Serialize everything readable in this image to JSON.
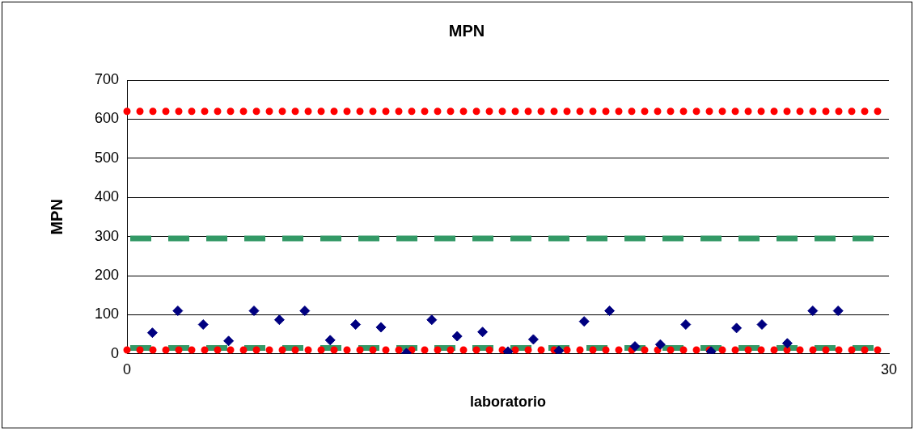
{
  "chart_data": {
    "type": "scatter",
    "title": "MPN",
    "xlabel": "laboratorio",
    "ylabel": "MPN",
    "x": [
      1,
      2,
      3,
      4,
      5,
      6,
      7,
      8,
      9,
      10,
      11,
      12,
      13,
      14,
      15,
      16,
      17,
      18,
      19,
      20,
      21,
      22,
      23,
      24,
      25,
      26,
      27,
      28
    ],
    "series": [
      {
        "color": "#000080",
        "values": [
          54,
          110,
          75,
          33,
          110,
          87,
          110,
          35,
          75,
          68,
          2,
          87,
          45,
          56,
          6,
          37,
          8,
          83,
          110,
          19,
          24,
          75,
          6,
          66,
          75,
          27,
          110,
          110
        ]
      }
    ],
    "xlim": [
      0,
      30
    ],
    "xticks": [
      0,
      30
    ],
    "ylim": [
      0,
      700
    ],
    "yticks": [
      0,
      100,
      200,
      300,
      400,
      500,
      600,
      700
    ],
    "grid": "y",
    "marker": "diamond",
    "legend": false,
    "ref_lines": [
      {
        "axis": "y",
        "value": 620,
        "color": "#ff0000",
        "line_style": "dotted"
      },
      {
        "axis": "y",
        "value": 295,
        "color": "#339966",
        "line_style": "dashed"
      },
      {
        "axis": "y",
        "value": 15,
        "color": "#339966",
        "line_style": "dashed"
      },
      {
        "axis": "y",
        "value": 10,
        "color": "#ff0000",
        "line_style": "dotted"
      }
    ]
  }
}
